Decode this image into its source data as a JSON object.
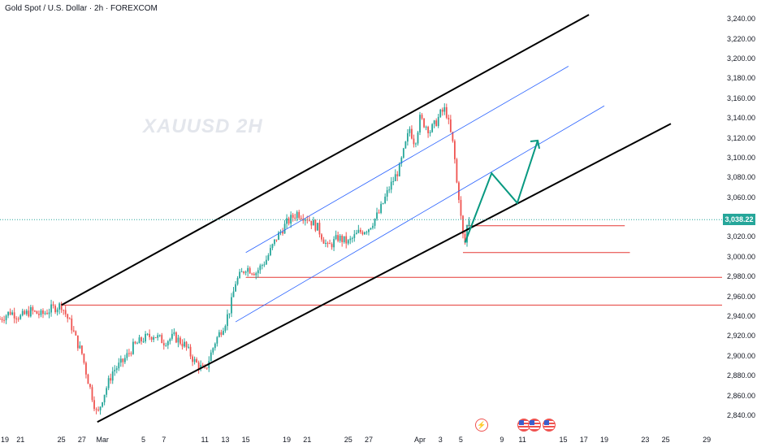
{
  "symbol_title": "Gold Spot / U.S. Dollar · 2h · FOREXCOM",
  "watermark": "XAUUSD  2H",
  "current_price_label": "3,038.22",
  "colors": {
    "up": "#26a69a",
    "down": "#ef5350",
    "channel": "#000000",
    "inner_channel": "#2962ff",
    "level": "#e53935",
    "projection": "#089981"
  },
  "icons": [
    "lightning-icon",
    "us-flag-icon",
    "us-flag-icon",
    "us-flag-icon"
  ],
  "chart_data": {
    "type": "candlestick",
    "title": "Gold Spot / U.S. Dollar · 2h · FOREXCOM",
    "y_ticks": [
      "3,240.00",
      "3,220.00",
      "3,200.00",
      "3,180.00",
      "3,160.00",
      "3,140.00",
      "3,120.00",
      "3,100.00",
      "3,080.00",
      "3,060.00",
      "3,040.00",
      "3,020.00",
      "3,000.00",
      "2,980.00",
      "2,960.00",
      "2,940.00",
      "2,920.00",
      "2,900.00",
      "2,880.00",
      "2,860.00",
      "2,840.00"
    ],
    "ylim": [
      2835,
      3250
    ],
    "x_ticks": [
      {
        "label": "19",
        "x": 0
      },
      {
        "label": "21",
        "x": 2
      },
      {
        "label": "25",
        "x": 6
      },
      {
        "label": "27",
        "x": 8
      },
      {
        "label": "Mar",
        "x": 10
      },
      {
        "label": "5",
        "x": 14
      },
      {
        "label": "7",
        "x": 16
      },
      {
        "label": "11",
        "x": 20
      },
      {
        "label": "13",
        "x": 22
      },
      {
        "label": "15",
        "x": 24
      },
      {
        "label": "19",
        "x": 28
      },
      {
        "label": "21",
        "x": 30
      },
      {
        "label": "25",
        "x": 34
      },
      {
        "label": "27",
        "x": 36
      },
      {
        "label": "Apr",
        "x": 41
      },
      {
        "label": "3",
        "x": 43
      },
      {
        "label": "5",
        "x": 45
      },
      {
        "label": "9",
        "x": 49
      },
      {
        "label": "11",
        "x": 51
      },
      {
        "label": "15",
        "x": 55
      },
      {
        "label": "17",
        "x": 57
      },
      {
        "label": "19",
        "x": 59
      },
      {
        "label": "23",
        "x": 63
      },
      {
        "label": "25",
        "x": 65
      },
      {
        "label": "29",
        "x": 69
      }
    ],
    "xlim": [
      0,
      70.5
    ],
    "price_path": [
      [
        0,
        2938
      ],
      [
        1,
        2945
      ],
      [
        2,
        2940
      ],
      [
        3,
        2946
      ],
      [
        4,
        2942
      ],
      [
        5,
        2948
      ],
      [
        6,
        2952
      ],
      [
        7,
        2930
      ],
      [
        7.5,
        2915
      ],
      [
        8,
        2903
      ],
      [
        8.5,
        2880
      ],
      [
        9,
        2860
      ],
      [
        9.5,
        2840
      ],
      [
        10,
        2858
      ],
      [
        11,
        2885
      ],
      [
        12,
        2895
      ],
      [
        13,
        2910
      ],
      [
        14,
        2918
      ],
      [
        15,
        2922
      ],
      [
        16,
        2915
      ],
      [
        17,
        2920
      ],
      [
        18,
        2912
      ],
      [
        19,
        2895
      ],
      [
        20,
        2885
      ],
      [
        21,
        2915
      ],
      [
        22,
        2935
      ],
      [
        22.5,
        2950
      ],
      [
        23,
        2975
      ],
      [
        24,
        2990
      ],
      [
        25,
        2985
      ],
      [
        26,
        2998
      ],
      [
        27,
        3020
      ],
      [
        28,
        3035
      ],
      [
        29,
        3045
      ],
      [
        30,
        3040
      ],
      [
        31,
        3030
      ],
      [
        32,
        3010
      ],
      [
        33,
        3020
      ],
      [
        34,
        3015
      ],
      [
        35,
        3025
      ],
      [
        36,
        3030
      ],
      [
        37,
        3045
      ],
      [
        38,
        3070
      ],
      [
        39,
        3090
      ],
      [
        40,
        3130
      ],
      [
        40.5,
        3115
      ],
      [
        41,
        3140
      ],
      [
        42,
        3128
      ],
      [
        42.5,
        3135
      ],
      [
        43,
        3145
      ],
      [
        43.5,
        3150
      ],
      [
        44,
        3125
      ],
      [
        44.3,
        3110
      ],
      [
        44.6,
        3075
      ],
      [
        44.9,
        3055
      ],
      [
        45.1,
        3025
      ],
      [
        45.4,
        3015
      ],
      [
        45.7,
        3040
      ],
      [
        46,
        3038
      ]
    ],
    "channels": [
      {
        "name": "",
        "from": [
          6,
          2952
        ],
        "to": [
          57.5,
          3245
        ]
      },
      {
        "name": "",
        "from": [
          9.5,
          2834
        ],
        "to": [
          65.5,
          3135
        ]
      },
      {
        "name": "",
        "from": [
          24,
          3005
        ],
        "to": [
          55.5,
          3193
        ]
      },
      {
        "name": "",
        "from": [
          23,
          2935
        ],
        "to": [
          59,
          3153
        ]
      }
    ],
    "levels": [
      {
        "price": 3032,
        "from": 45.5,
        "to": 61
      },
      {
        "price": 3005,
        "from": 45.2,
        "to": 61.5
      },
      {
        "price": 2980,
        "from": 24,
        "to": 70.5
      },
      {
        "price": 2952,
        "from": 6,
        "to": 70.5
      }
    ],
    "projection": [
      [
        45.4,
        3015
      ],
      [
        48,
        3085
      ],
      [
        50.5,
        3055
      ],
      [
        52.5,
        3118
      ]
    ],
    "current_price": 3038.22
  }
}
